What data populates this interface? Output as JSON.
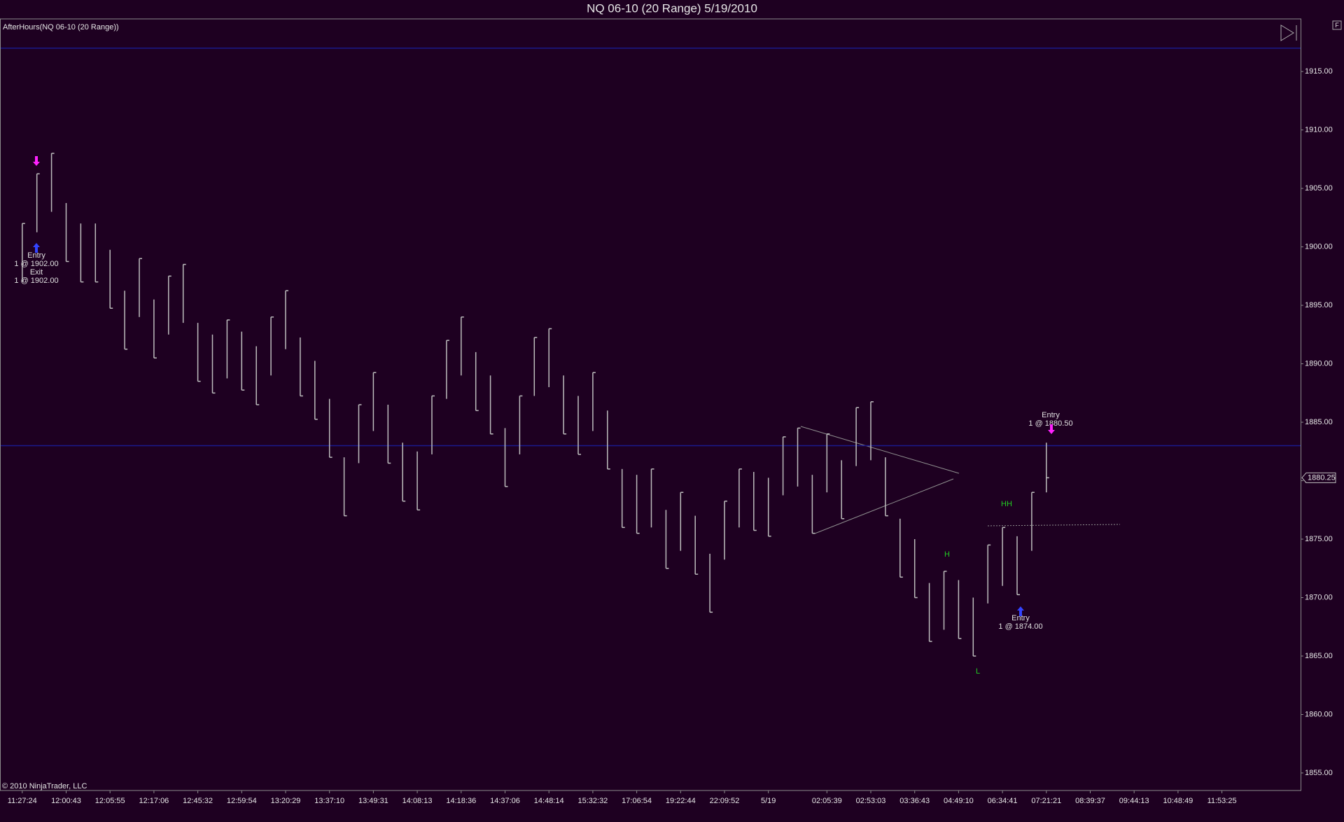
{
  "chart_data": {
    "type": "ohlc",
    "title": "NQ 06-10 (20 Range)  5/19/2010",
    "indicator_label": "AfterHours(NQ 06-10 (20 Range))",
    "copyright": "© 2010 NinjaTrader, LLC",
    "corner_button": "F",
    "color": "#bdbdbd",
    "categories": [
      "11:27:24",
      null,
      null,
      "12:00:43",
      null,
      null,
      "12:05:55",
      null,
      null,
      "12:17:06",
      null,
      null,
      "12:45:32",
      null,
      null,
      "12:59:54",
      null,
      null,
      "13:20:29",
      null,
      null,
      "13:37:10",
      null,
      null,
      "13:49:31",
      null,
      null,
      "14:08:13",
      null,
      null,
      "14:18:36",
      null,
      null,
      "14:37:06",
      null,
      null,
      "14:48:14",
      null,
      null,
      "15:32:32",
      null,
      null,
      "17:06:54",
      null,
      null,
      "19:22:44",
      null,
      null,
      "22:09:52",
      null,
      null,
      "5/19",
      null,
      null,
      null,
      "02:05:39",
      null,
      null,
      "02:53:03",
      null,
      null,
      "03:36:43",
      null,
      null,
      "04:49:10",
      null,
      null,
      "06:34:41",
      null,
      null,
      "07:21:21",
      null,
      null,
      "08:39:37",
      null,
      null,
      "09:44:13",
      null,
      null,
      "10:48:49",
      null,
      null,
      "11:53:25"
    ],
    "high": [
      1902.0,
      1906.25,
      1908.0,
      1903.75,
      1902.0,
      1902.0,
      1899.75,
      1896.25,
      1899.0,
      1895.5,
      1897.5,
      1898.5,
      1893.5,
      1892.5,
      1893.75,
      1892.75,
      1891.5,
      1894.0,
      1896.25,
      1892.25,
      1890.25,
      1887.0,
      1882.0,
      1886.5,
      1889.25,
      1886.5,
      1883.25,
      1882.5,
      1887.25,
      1892.0,
      1894.0,
      1891.0,
      1889.0,
      1884.5,
      1887.25,
      1892.25,
      1893.0,
      1889.0,
      1887.25,
      1889.25,
      1886.0,
      1881.0,
      1880.5,
      1881.0,
      1877.5,
      1879.0,
      1877.0,
      1873.75,
      1878.25,
      1881.0,
      1880.75,
      1880.25,
      1883.75,
      1884.5,
      1880.5,
      1884.0,
      1881.75,
      1886.25,
      1886.75,
      1882.0,
      1876.75,
      1875.0,
      1871.25,
      1872.25,
      1871.5,
      1870.0,
      1874.5,
      1876.0,
      1875.25,
      1879.0,
      1883.25,
      null,
      null,
      null,
      null,
      null,
      null,
      null,
      null,
      null,
      null,
      null,
      null
    ],
    "low": [
      1897.0,
      1901.25,
      1903.0,
      1898.75,
      1897.0,
      1897.0,
      1894.75,
      1891.25,
      1894.0,
      1890.5,
      1892.5,
      1893.5,
      1888.5,
      1887.5,
      1888.75,
      1887.75,
      1886.5,
      1889.0,
      1891.25,
      1887.25,
      1885.25,
      1882.0,
      1877.0,
      1881.5,
      1884.25,
      1881.5,
      1878.25,
      1877.5,
      1882.25,
      1887.0,
      1889.0,
      1886.0,
      1884.0,
      1879.5,
      1882.25,
      1887.25,
      1888.0,
      1884.0,
      1882.25,
      1884.25,
      1881.0,
      1876.0,
      1875.5,
      1876.0,
      1872.5,
      1874.0,
      1872.0,
      1868.75,
      1873.25,
      1876.0,
      1875.75,
      1875.25,
      1878.75,
      1879.5,
      1875.5,
      1879.0,
      1876.75,
      1881.25,
      1881.75,
      1877.0,
      1871.75,
      1870.0,
      1866.25,
      1867.25,
      1866.5,
      1865.0,
      1869.5,
      1871.0,
      1870.25,
      1874.0,
      1879.0,
      null,
      null,
      null,
      null,
      null,
      null,
      null,
      null,
      null,
      null,
      null,
      null
    ],
    "close": [
      1902.0,
      1906.25,
      1908.0,
      1898.75,
      1897.0,
      1897.0,
      1894.75,
      1891.25,
      1899.0,
      1890.5,
      1897.5,
      1898.5,
      1888.5,
      1887.5,
      1893.75,
      1887.75,
      1886.5,
      1894.0,
      1896.25,
      1887.25,
      1885.25,
      1882.0,
      1877.0,
      1886.5,
      1889.25,
      1881.5,
      1878.25,
      1877.5,
      1887.25,
      1892.0,
      1894.0,
      1886.0,
      1884.0,
      1879.5,
      1887.25,
      1892.25,
      1893.0,
      1884.0,
      1882.25,
      1889.25,
      1881.0,
      1876.0,
      1875.5,
      1881.0,
      1872.5,
      1879.0,
      1872.0,
      1868.75,
      1878.25,
      1881.0,
      1875.75,
      1875.25,
      1883.75,
      1884.5,
      1875.5,
      1884.0,
      1876.75,
      1886.25,
      1886.75,
      1877.0,
      1871.75,
      1870.0,
      1866.25,
      1872.25,
      1866.5,
      1865.0,
      1874.5,
      1876.0,
      1870.25,
      1879.0,
      1880.25,
      null,
      null,
      null,
      null,
      null,
      null,
      null,
      null,
      null,
      null,
      null,
      null
    ],
    "ylim": [
      1853.5,
      1919.5
    ],
    "yticks": [
      {
        "value": 1855,
        "label": "1855.00"
      },
      {
        "value": 1860,
        "label": "1860.00"
      },
      {
        "value": 1865,
        "label": "1865.00"
      },
      {
        "value": 1870,
        "label": "1870.00"
      },
      {
        "value": 1875,
        "label": "1875.00"
      },
      {
        "value": 1880,
        "label": "1880.00"
      },
      {
        "value": 1885,
        "label": "1885.00"
      },
      {
        "value": 1890,
        "label": "1890.00"
      },
      {
        "value": 1895,
        "label": "1895.00"
      },
      {
        "value": 1900,
        "label": "1900.00"
      },
      {
        "value": 1905,
        "label": "1905.00"
      },
      {
        "value": 1910,
        "label": "1910.00"
      },
      {
        "value": 1915,
        "label": "1915.00"
      }
    ],
    "hlines": [
      1917.0,
      1883.0
    ],
    "last_price": 1880.25,
    "annotations": [
      "Entry",
      "1 @ 1902.00",
      "Exit",
      "1 @ 1902.00",
      "Entry",
      "1 @ 1880.50",
      "Entry",
      "1 @ 1874.00",
      "HH",
      "H",
      "L"
    ]
  }
}
